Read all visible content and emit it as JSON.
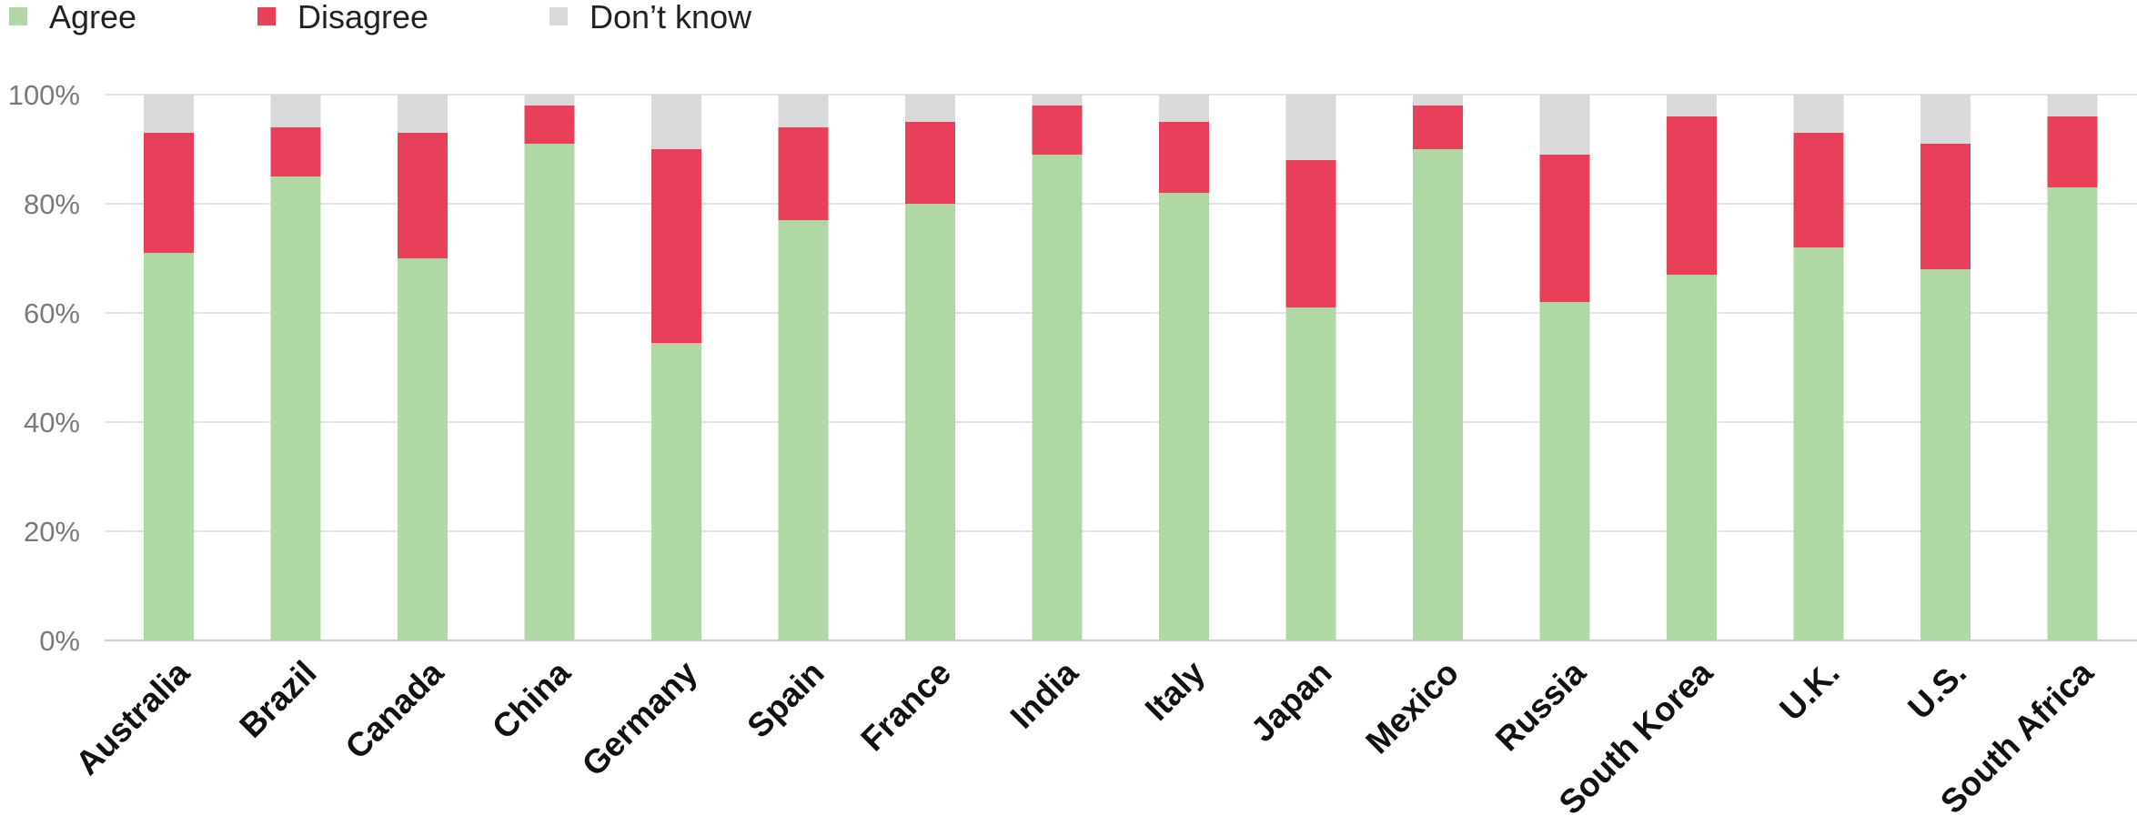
{
  "chart_data": {
    "type": "bar",
    "stacked": true,
    "categories": [
      "Australia",
      "Brazil",
      "Canada",
      "China",
      "Germany",
      "Spain",
      "France",
      "India",
      "Italy",
      "Japan",
      "Mexico",
      "Russia",
      "South Korea",
      "U.K.",
      "U.S.",
      "South Africa"
    ],
    "series": [
      {
        "name": "Agree",
        "color": "#b0d8a4",
        "values": [
          71,
          85,
          70,
          91,
          54.5,
          77,
          80,
          89,
          82,
          61,
          90,
          62,
          67,
          72,
          68,
          83
        ]
      },
      {
        "name": "Disagree",
        "color": "#e8405a",
        "values": [
          22,
          9,
          23,
          7,
          35.5,
          17,
          15,
          9,
          13,
          27,
          8,
          27,
          29,
          21,
          23,
          13
        ]
      },
      {
        "name": "Don’t know",
        "color": "#d9d9d9",
        "values": [
          7,
          6,
          7,
          2,
          10,
          6,
          5,
          2,
          5,
          12,
          2,
          11,
          4,
          7,
          9,
          4
        ]
      }
    ],
    "y_ticks": [
      "0%",
      "20%",
      "40%",
      "60%",
      "80%",
      "100%"
    ],
    "ylim": [
      0,
      100
    ],
    "grid": true,
    "legend_position": "top-left"
  }
}
